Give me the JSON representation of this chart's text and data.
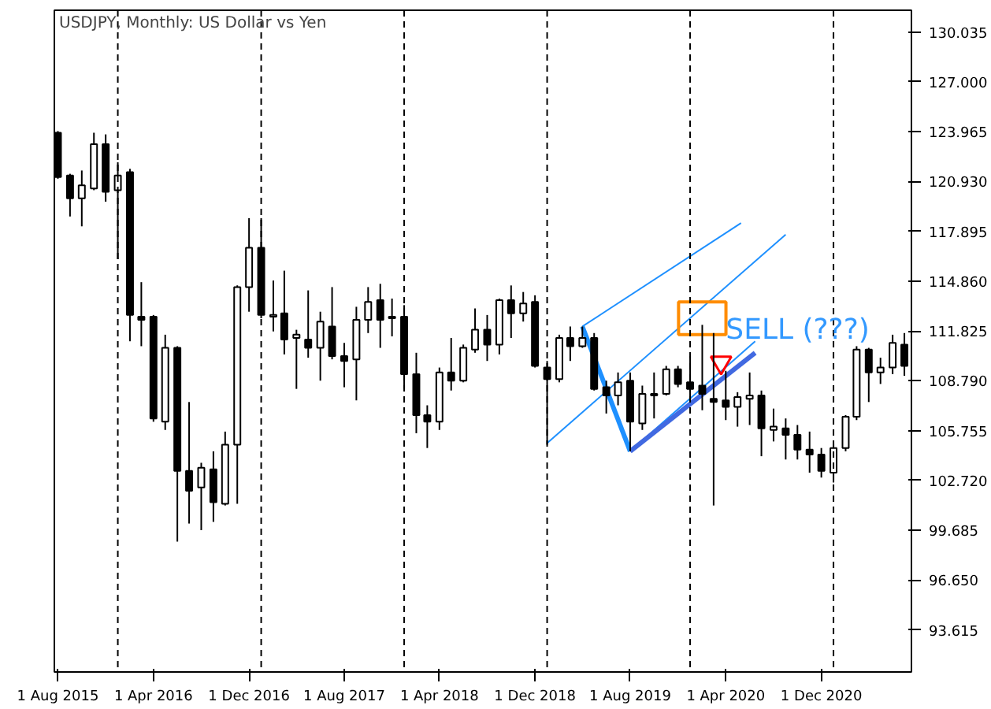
{
  "chart_data": {
    "type": "candlestick",
    "title": "USDJPY, Monthly:  US Dollar vs Yen",
    "x": [
      "2015-08-01",
      "2015-09-01",
      "2015-10-01",
      "2015-11-01",
      "2015-12-01",
      "2016-01-01",
      "2016-02-01",
      "2016-03-01",
      "2016-04-01",
      "2016-05-01",
      "2016-06-01",
      "2016-07-01",
      "2016-08-01",
      "2016-09-01",
      "2016-10-01",
      "2016-11-01",
      "2016-12-01",
      "2017-01-01",
      "2017-02-01",
      "2017-03-01",
      "2017-04-01",
      "2017-05-01",
      "2017-06-01",
      "2017-07-01",
      "2017-08-01",
      "2017-09-01",
      "2017-10-01",
      "2017-11-01",
      "2017-12-01",
      "2018-01-01",
      "2018-02-01",
      "2018-03-01",
      "2018-04-01",
      "2018-05-01",
      "2018-06-01",
      "2018-07-01",
      "2018-08-01",
      "2018-09-01",
      "2018-10-01",
      "2018-11-01",
      "2018-12-01",
      "2019-01-01",
      "2019-02-01",
      "2019-03-01",
      "2019-04-01",
      "2019-05-01",
      "2019-06-01",
      "2019-07-01",
      "2019-08-01",
      "2019-09-01",
      "2019-10-01",
      "2019-11-01",
      "2019-12-01",
      "2020-01-01",
      "2020-02-01",
      "2020-03-01",
      "2020-04-01",
      "2020-05-01",
      "2020-06-01",
      "2020-07-01",
      "2020-08-01",
      "2020-09-01",
      "2020-10-01",
      "2020-11-01",
      "2020-12-01",
      "2021-01-01",
      "2021-02-01",
      "2021-03-01",
      "2021-04-01",
      "2021-05-01",
      "2021-06-01",
      "2021-07-01"
    ],
    "ohlc": [
      [
        123.9,
        124.0,
        121.1,
        121.2
      ],
      [
        121.3,
        121.4,
        118.8,
        119.9
      ],
      [
        119.9,
        121.6,
        118.2,
        120.7
      ],
      [
        120.5,
        123.9,
        120.4,
        123.2
      ],
      [
        123.2,
        123.8,
        119.7,
        120.3
      ],
      [
        120.4,
        122.1,
        116.2,
        121.3
      ],
      [
        121.5,
        121.7,
        111.2,
        112.8
      ],
      [
        112.7,
        114.8,
        110.9,
        112.5
      ],
      [
        112.7,
        112.8,
        106.3,
        106.5
      ],
      [
        106.3,
        111.6,
        105.8,
        110.8
      ],
      [
        110.8,
        110.9,
        99.0,
        103.3
      ],
      [
        103.3,
        107.5,
        100.1,
        102.1
      ],
      [
        102.3,
        103.8,
        99.7,
        103.5
      ],
      [
        103.4,
        104.5,
        100.2,
        101.4
      ],
      [
        101.3,
        105.7,
        101.2,
        104.9
      ],
      [
        104.9,
        114.6,
        101.3,
        114.5
      ],
      [
        114.5,
        118.7,
        113.0,
        116.9
      ],
      [
        116.9,
        118.7,
        112.6,
        112.8
      ],
      [
        112.7,
        114.9,
        111.8,
        112.8
      ],
      [
        112.9,
        115.5,
        110.4,
        111.3
      ],
      [
        111.4,
        111.9,
        108.3,
        111.6
      ],
      [
        111.3,
        114.3,
        110.2,
        110.8
      ],
      [
        110.8,
        113.0,
        108.8,
        112.4
      ],
      [
        112.1,
        114.5,
        110.1,
        110.3
      ],
      [
        110.3,
        111.1,
        108.4,
        110.0
      ],
      [
        110.1,
        113.3,
        107.6,
        112.5
      ],
      [
        112.5,
        114.5,
        111.7,
        113.6
      ],
      [
        113.7,
        114.7,
        110.8,
        112.5
      ],
      [
        112.6,
        113.8,
        111.5,
        112.7
      ],
      [
        112.7,
        113.4,
        108.3,
        109.2
      ],
      [
        109.2,
        110.5,
        105.6,
        106.7
      ],
      [
        106.7,
        107.3,
        104.7,
        106.3
      ],
      [
        106.3,
        109.6,
        105.8,
        109.3
      ],
      [
        109.3,
        111.4,
        108.2,
        108.8
      ],
      [
        108.8,
        111.0,
        108.7,
        110.8
      ],
      [
        110.7,
        113.2,
        110.5,
        111.9
      ],
      [
        111.9,
        112.8,
        110.0,
        111.0
      ],
      [
        111.0,
        113.8,
        110.4,
        113.7
      ],
      [
        113.7,
        114.6,
        111.4,
        112.9
      ],
      [
        112.9,
        114.2,
        112.4,
        113.5
      ],
      [
        113.6,
        114.0,
        109.6,
        109.7
      ],
      [
        109.6,
        110.0,
        104.9,
        108.9
      ],
      [
        108.9,
        111.6,
        108.7,
        111.4
      ],
      [
        111.4,
        112.1,
        110.0,
        110.9
      ],
      [
        110.9,
        112.1,
        110.8,
        111.4
      ],
      [
        111.4,
        111.7,
        108.2,
        108.3
      ],
      [
        108.4,
        108.8,
        106.8,
        107.9
      ],
      [
        107.9,
        109.3,
        107.3,
        108.7
      ],
      [
        108.8,
        109.3,
        104.5,
        106.3
      ],
      [
        106.2,
        108.5,
        105.8,
        108.0
      ],
      [
        107.9,
        109.3,
        106.5,
        108.0
      ],
      [
        108.0,
        109.7,
        107.9,
        109.5
      ],
      [
        109.5,
        109.7,
        108.4,
        108.6
      ],
      [
        108.7,
        110.3,
        107.6,
        108.3
      ],
      [
        108.5,
        112.2,
        107.0,
        108.0
      ],
      [
        107.7,
        111.7,
        101.2,
        107.5
      ],
      [
        107.6,
        109.4,
        106.4,
        107.2
      ],
      [
        107.2,
        108.1,
        106.0,
        107.8
      ],
      [
        107.7,
        109.3,
        106.1,
        107.9
      ],
      [
        107.9,
        108.2,
        104.2,
        105.9
      ],
      [
        105.8,
        107.1,
        105.1,
        106.0
      ],
      [
        105.9,
        106.5,
        104.0,
        105.5
      ],
      [
        105.5,
        106.1,
        104.0,
        104.6
      ],
      [
        104.6,
        105.7,
        103.2,
        104.3
      ],
      [
        104.3,
        104.7,
        102.9,
        103.3
      ],
      [
        103.2,
        105.0,
        102.6,
        104.7
      ],
      [
        104.7,
        106.7,
        104.5,
        106.6
      ],
      [
        106.6,
        110.9,
        106.4,
        110.7
      ],
      [
        110.7,
        110.8,
        107.5,
        109.3
      ],
      [
        109.3,
        110.2,
        108.6,
        109.6
      ],
      [
        109.6,
        111.6,
        109.2,
        111.1
      ],
      [
        111.0,
        111.7,
        109.1,
        109.7
      ]
    ],
    "series": [
      {
        "type": "line",
        "color": "#1e90ff",
        "x": [
          "2019-01-01",
          "2020-09-01"
        ],
        "values": [
          105.0,
          117.7
        ]
      },
      {
        "type": "line",
        "color": "#1e90ff",
        "x": [
          "2019-04-01",
          "2020-05-10"
        ],
        "values": [
          112.1,
          118.4
        ]
      },
      {
        "type": "line",
        "color": "#1e90ff",
        "x": [
          "2019-08-01",
          "2020-06-15"
        ],
        "values": [
          104.5,
          111.2
        ]
      },
      {
        "type": "line",
        "color": "#1e90ff",
        "x": [
          "2019-04-01",
          "2019-08-01"
        ],
        "values": [
          112.1,
          104.5
        ]
      },
      {
        "type": "line",
        "color": "#4169e1",
        "x": [
          "2019-08-01",
          "2020-06-15"
        ],
        "values": [
          104.5,
          110.5
        ]
      },
      {
        "type": "bar",
        "color": "#ff8c00",
        "x": [
          "2020-02-01"
        ],
        "base": [
          111.6
        ],
        "values": [
          2.0
        ]
      },
      {
        "type": "scatter",
        "marker": "triangle",
        "color": "#ff0000",
        "x": [
          "2020-03-20"
        ],
        "values": [
          109.9
        ]
      }
    ],
    "annotations": [
      {
        "text": "SELL (???)",
        "x": "2020-04-01",
        "y": 111.9
      }
    ],
    "ref_lines": [
      {
        "axis": "x",
        "value": "2016-01-01",
        "line_style": "dashed"
      },
      {
        "axis": "x",
        "value": "2017-01-01",
        "line_style": "dashed"
      },
      {
        "axis": "x",
        "value": "2018-01-01",
        "line_style": "dashed"
      },
      {
        "axis": "x",
        "value": "2019-01-01",
        "line_style": "dashed"
      },
      {
        "axis": "x",
        "value": "2020-01-01",
        "line_style": "dashed"
      },
      {
        "axis": "x",
        "value": "2021-01-01",
        "line_style": "dashed"
      }
    ],
    "xlim": [
      "2015-07-23",
      "2021-07-19"
    ],
    "xticks": [
      {
        "value": "2015-08-01",
        "label": "1 Aug 2015"
      },
      {
        "value": "2016-04-01",
        "label": "1 Apr 2016"
      },
      {
        "value": "2016-12-01",
        "label": "1 Dec 2016"
      },
      {
        "value": "2017-08-01",
        "label": "1 Aug 2017"
      },
      {
        "value": "2018-04-01",
        "label": "1 Apr 2018"
      },
      {
        "value": "2018-12-01",
        "label": "1 Dec 2018"
      },
      {
        "value": "2019-08-01",
        "label": "1 Aug 2019"
      },
      {
        "value": "2020-04-01",
        "label": "1 Apr 2020"
      },
      {
        "value": "2020-12-01",
        "label": "1 Dec 2020"
      }
    ],
    "ylim": [
      91.06,
      131.36
    ],
    "yticks": [
      {
        "value": 93.615,
        "label": "93.615"
      },
      {
        "value": 96.65,
        "label": "96.650"
      },
      {
        "value": 99.685,
        "label": "99.685"
      },
      {
        "value": 102.72,
        "label": "102.720"
      },
      {
        "value": 105.755,
        "label": "105.755"
      },
      {
        "value": 108.79,
        "label": "108.790"
      },
      {
        "value": 111.825,
        "label": "111.825"
      },
      {
        "value": 114.86,
        "label": "114.860"
      },
      {
        "value": 117.895,
        "label": "117.895"
      },
      {
        "value": 120.93,
        "label": "120.930"
      },
      {
        "value": 123.965,
        "label": "123.965"
      },
      {
        "value": 127.0,
        "label": "127.000"
      },
      {
        "value": 130.035,
        "label": "130.035"
      }
    ]
  }
}
